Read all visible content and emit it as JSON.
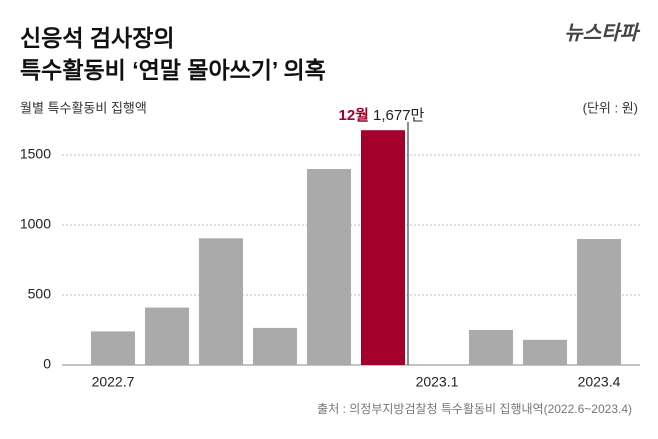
{
  "chart_data": {
    "type": "bar",
    "title_lines": [
      "신응석 검사장의",
      "특수활동비 ‘연말 몰아쓰기’ 의혹"
    ],
    "brand": "뉴스타파",
    "y_label": "월별 특수활동비 집행액",
    "unit": "(단위 : 원)",
    "source": "출처 : 의정부지방검찰청 특수활동비 집행내역(2022.6~2023.4)",
    "categories": [
      "2022.7",
      null,
      null,
      null,
      null,
      null,
      "2023.1",
      null,
      null,
      "2023.4"
    ],
    "values": [
      240,
      410,
      905,
      265,
      1400,
      1677,
      0,
      250,
      180,
      900
    ],
    "value_labels": [
      null,
      null,
      null,
      null,
      null,
      "1,677만",
      null,
      null,
      null,
      null
    ],
    "highlight": {
      "index": 5,
      "label": "12월",
      "color": "#a3002b"
    },
    "color": "#aaaaaa",
    "ylim": [
      0,
      1700
    ],
    "yticks": [
      0,
      500,
      1000,
      1500
    ],
    "grid": true
  }
}
